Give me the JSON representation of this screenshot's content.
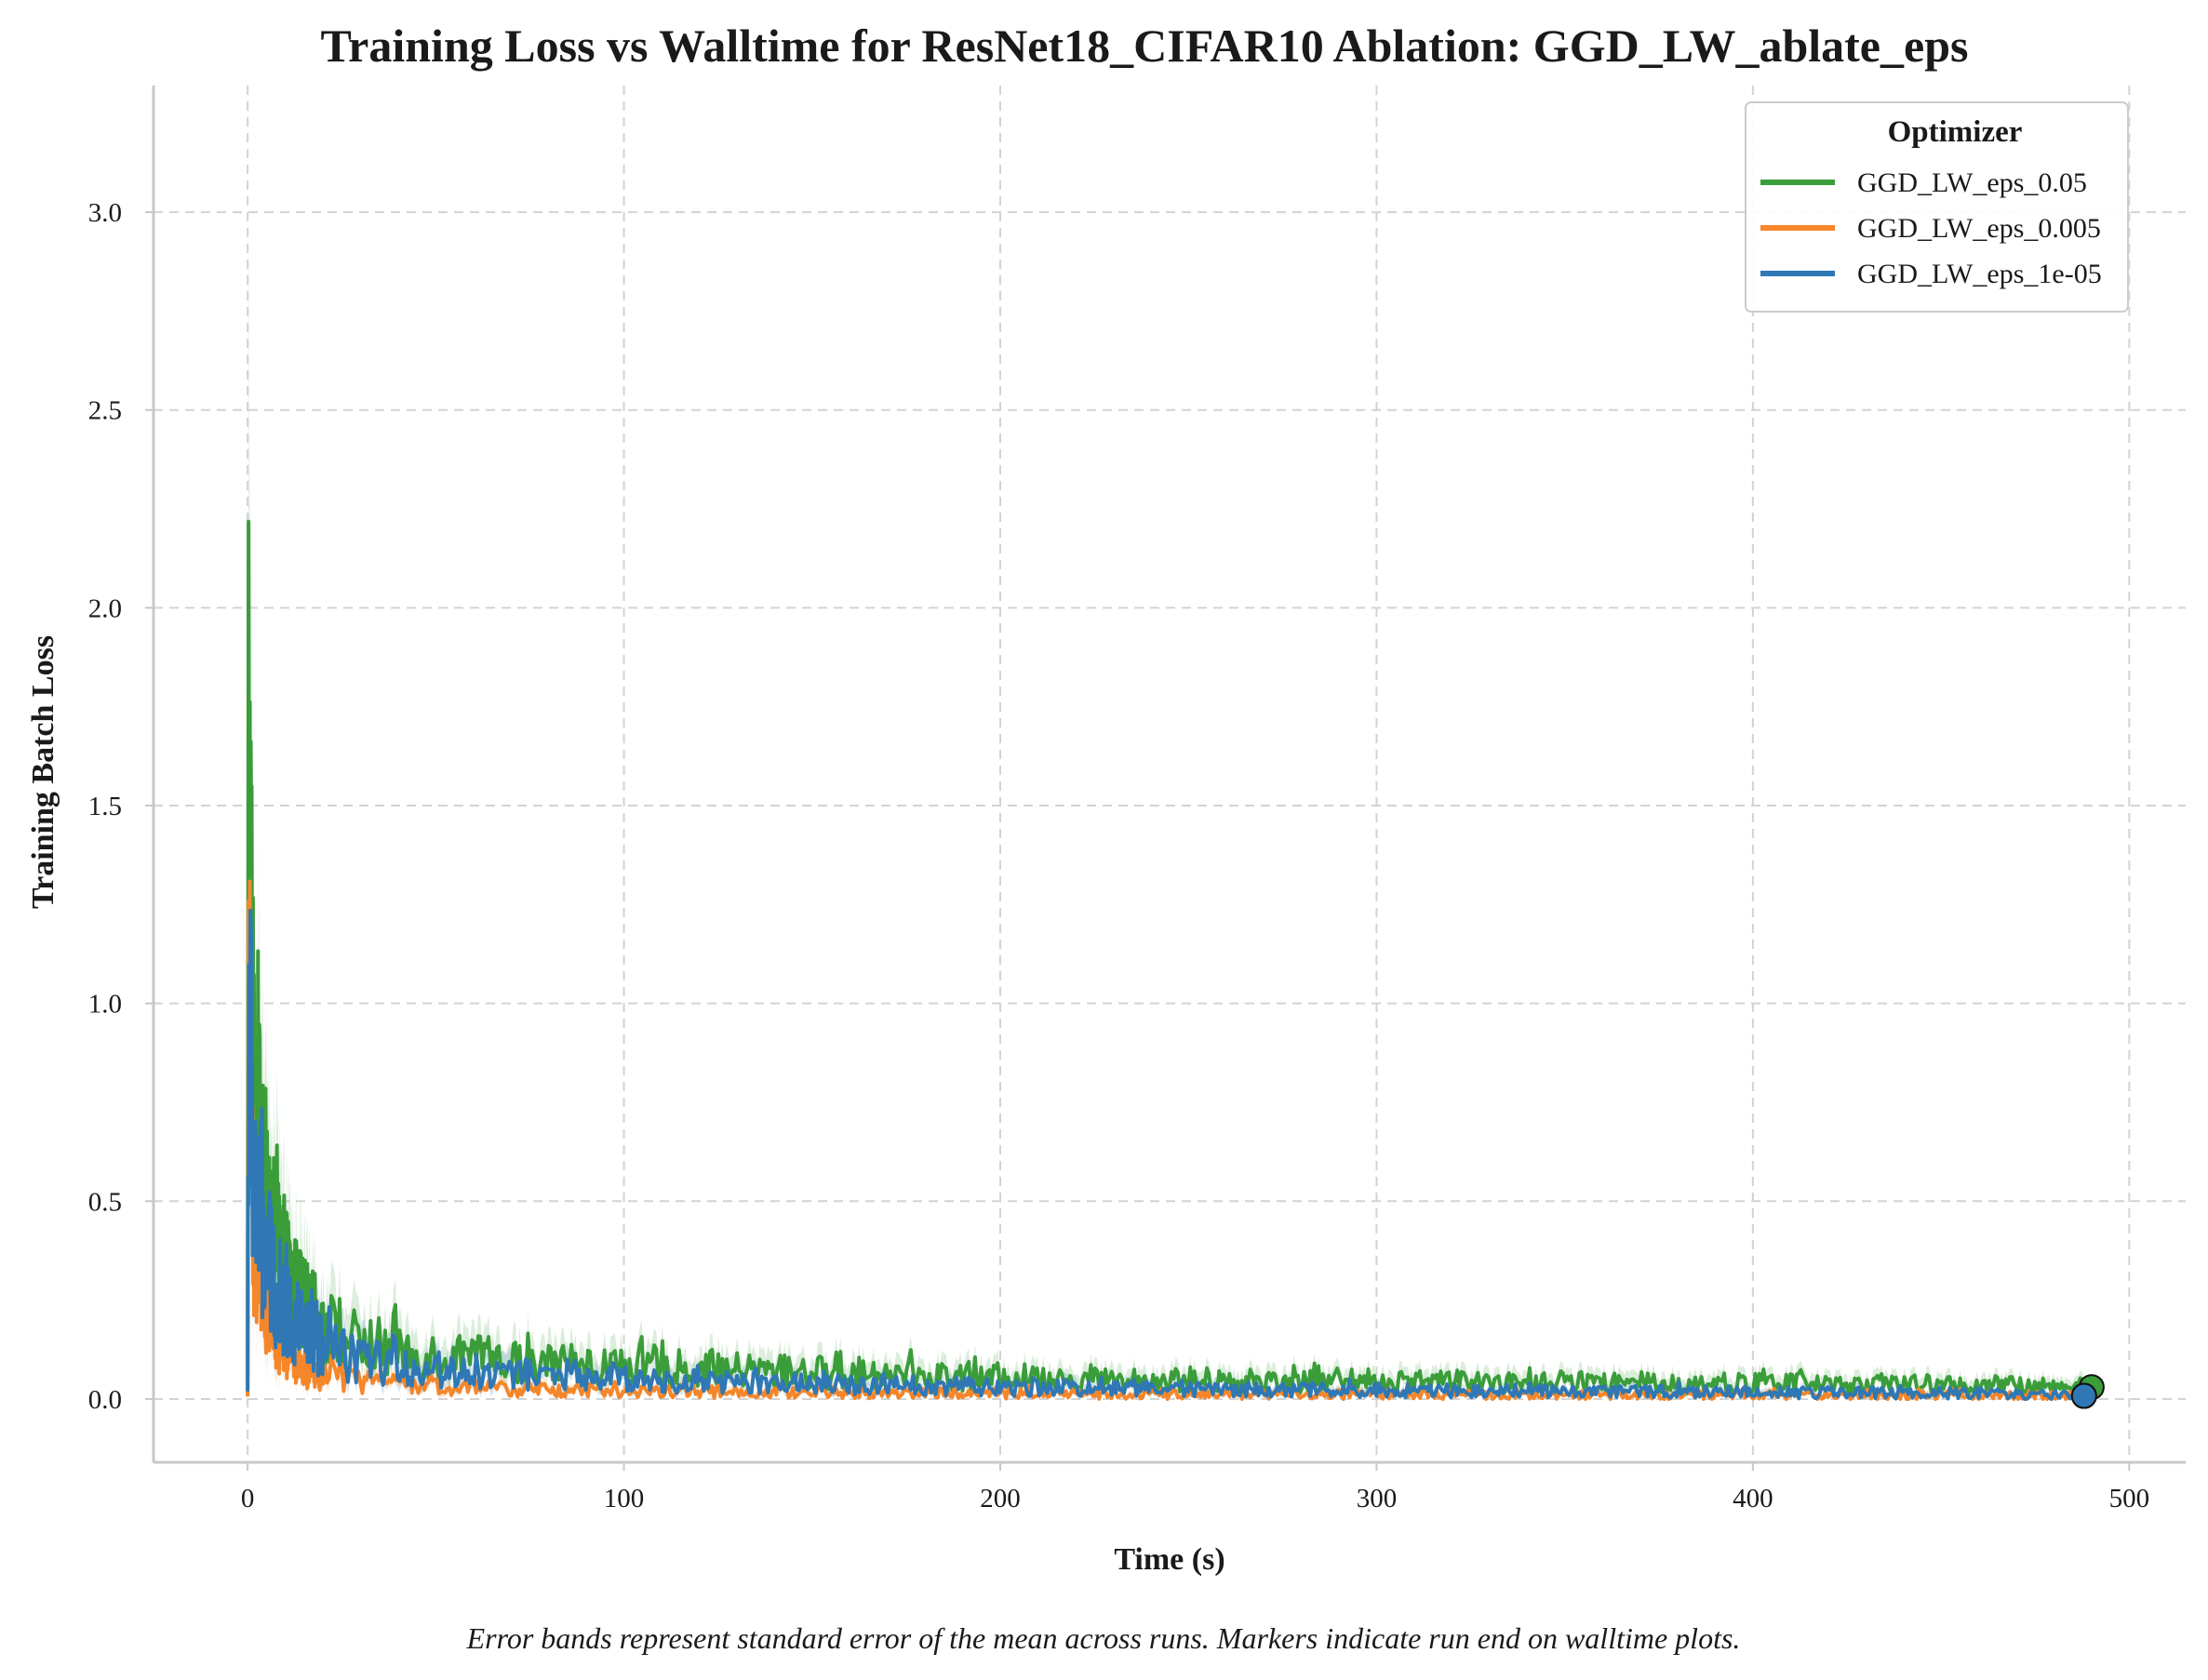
{
  "chart_data": {
    "type": "line",
    "title": "Training Loss vs Walltime for ResNet18_CIFAR10 Ablation: GGD_LW_ablate_eps",
    "xlabel": "Time (s)",
    "ylabel": "Training Batch Loss",
    "xlim": [
      -25,
      515
    ],
    "ylim": [
      -0.16,
      3.32
    ],
    "xticks": [
      0,
      100,
      200,
      300,
      400,
      500
    ],
    "xtick_labels": [
      "0",
      "100",
      "200",
      "300",
      "400",
      "500"
    ],
    "yticks": [
      0.0,
      0.5,
      1.0,
      1.5,
      2.0,
      2.5,
      3.0
    ],
    "ytick_labels": [
      "0.0",
      "0.5",
      "1.0",
      "1.5",
      "2.0",
      "2.5",
      "3.0"
    ],
    "grid": true,
    "legend": {
      "title": "Optimizer",
      "placement": "top-right"
    },
    "caption": "Error bands represent standard error of the mean across runs. Markers indicate run end on walltime plots.",
    "series": [
      {
        "name": "GGD_LW_eps_0.05",
        "color": "#3a9d3a",
        "x": [
          0,
          0.3,
          0.6,
          1,
          1.5,
          2,
          3,
          4,
          5,
          6,
          8,
          10,
          13,
          16,
          20,
          25,
          30,
          35,
          40,
          50,
          60,
          70,
          80,
          90,
          100,
          120,
          140,
          160,
          180,
          200,
          230,
          260,
          300,
          340,
          380,
          420,
          460,
          490
        ],
        "y": [
          0.02,
          2.07,
          1.45,
          1.18,
          0.85,
          0.7,
          0.62,
          0.55,
          0.5,
          0.45,
          0.38,
          0.32,
          0.26,
          0.22,
          0.18,
          0.16,
          0.14,
          0.13,
          0.12,
          0.11,
          0.1,
          0.095,
          0.09,
          0.085,
          0.08,
          0.075,
          0.07,
          0.065,
          0.06,
          0.055,
          0.05,
          0.048,
          0.045,
          0.042,
          0.04,
          0.038,
          0.035,
          0.03
        ],
        "end_marker": {
          "x": 490,
          "y": 0.03
        }
      },
      {
        "name": "GGD_LW_eps_0.005",
        "color": "#f5862a",
        "x": [
          0,
          0.3,
          0.6,
          1,
          1.5,
          2,
          3,
          4,
          5,
          6,
          8,
          10,
          13,
          16,
          20,
          25,
          30,
          35,
          40,
          50,
          60,
          70,
          80,
          90,
          100,
          120,
          140,
          160,
          180,
          200,
          230,
          260,
          300,
          340,
          380,
          420,
          460,
          488
        ],
        "y": [
          0.02,
          1.05,
          0.85,
          0.65,
          0.5,
          0.42,
          0.35,
          0.28,
          0.24,
          0.2,
          0.16,
          0.12,
          0.09,
          0.07,
          0.06,
          0.05,
          0.045,
          0.04,
          0.035,
          0.03,
          0.028,
          0.025,
          0.022,
          0.02,
          0.02,
          0.018,
          0.017,
          0.016,
          0.015,
          0.014,
          0.013,
          0.012,
          0.011,
          0.01,
          0.01,
          0.009,
          0.009,
          0.008
        ],
        "end_marker": {
          "x": 488,
          "y": 0.008
        }
      },
      {
        "name": "GGD_LW_eps_1e-05",
        "color": "#2f78b5",
        "x": [
          0,
          0.3,
          0.6,
          1,
          1.5,
          2,
          3,
          4,
          5,
          6,
          8,
          10,
          13,
          16,
          20,
          25,
          30,
          35,
          40,
          50,
          60,
          70,
          80,
          90,
          100,
          120,
          140,
          160,
          180,
          200,
          230,
          260,
          300,
          340,
          380,
          420,
          460,
          488
        ],
        "y": [
          0.02,
          1.15,
          0.95,
          0.75,
          0.6,
          0.52,
          0.45,
          0.4,
          0.36,
          0.32,
          0.27,
          0.23,
          0.19,
          0.16,
          0.13,
          0.11,
          0.1,
          0.09,
          0.085,
          0.075,
          0.07,
          0.065,
          0.06,
          0.055,
          0.05,
          0.045,
          0.04,
          0.037,
          0.034,
          0.03,
          0.028,
          0.025,
          0.022,
          0.02,
          0.018,
          0.016,
          0.014,
          0.008
        ],
        "end_marker": {
          "x": 488,
          "y": 0.008
        }
      }
    ]
  }
}
